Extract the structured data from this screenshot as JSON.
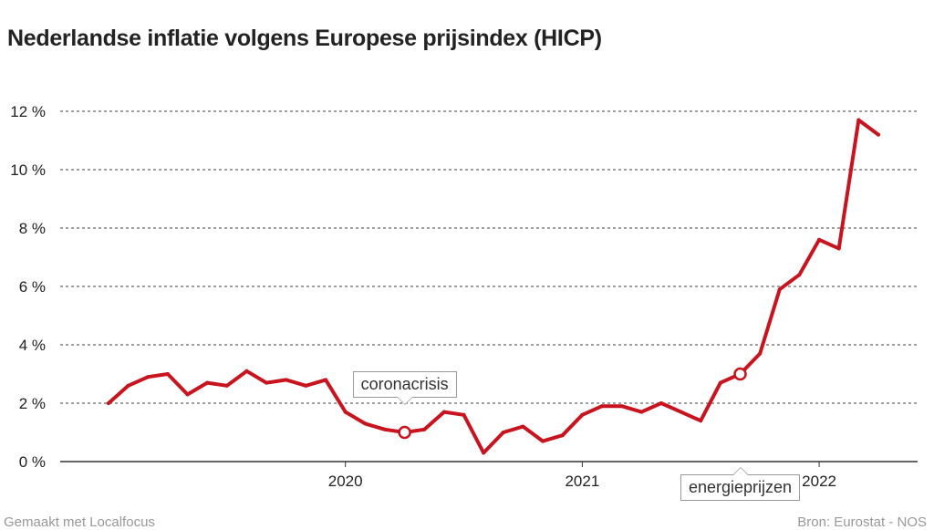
{
  "title": "Nederlandse inflatie volgens Europese prijsindex (HICP)",
  "footer": {
    "left": "Gemaakt met Localfocus",
    "right": "Bron: Eurostat - NOS"
  },
  "colors": {
    "line": "#c8141e",
    "grid": "#666666",
    "text": "#222222"
  },
  "chart_data": {
    "type": "line",
    "title": "Nederlandse inflatie volgens Europese prijsindex (HICP)",
    "xlabel": "",
    "ylabel": "",
    "ylim": [
      0,
      12
    ],
    "yticks": [
      0,
      2,
      4,
      6,
      8,
      10,
      12
    ],
    "ytick_labels": [
      "0 %",
      "2 %",
      "4 %",
      "6 %",
      "8 %",
      "10 %",
      "12 %"
    ],
    "xlim": [
      "2019-01",
      "2022-04"
    ],
    "xticks": [
      {
        "date": "2020-01",
        "label": "2020"
      },
      {
        "date": "2021-01",
        "label": "2021"
      },
      {
        "date": "2022-01",
        "label": "2022"
      }
    ],
    "grid": true,
    "legend": "none",
    "series": [
      {
        "x": [
          "2019-01",
          "2019-02",
          "2019-03",
          "2019-04",
          "2019-05",
          "2019-06",
          "2019-07",
          "2019-08",
          "2019-09",
          "2019-10",
          "2019-11",
          "2019-12",
          "2020-01",
          "2020-02",
          "2020-03",
          "2020-04",
          "2020-05",
          "2020-06",
          "2020-07",
          "2020-08",
          "2020-09",
          "2020-10",
          "2020-11",
          "2020-12",
          "2021-01",
          "2021-02",
          "2021-03",
          "2021-04",
          "2021-05",
          "2021-06",
          "2021-07",
          "2021-08",
          "2021-09",
          "2021-10",
          "2021-11",
          "2021-12",
          "2022-01",
          "2022-02",
          "2022-03",
          "2022-04"
        ],
        "values": [
          2.0,
          2.6,
          2.9,
          3.0,
          2.3,
          2.7,
          2.6,
          3.1,
          2.7,
          2.8,
          2.6,
          2.8,
          1.7,
          1.3,
          1.1,
          1.0,
          1.1,
          1.7,
          1.6,
          0.3,
          1.0,
          1.2,
          0.7,
          0.9,
          1.6,
          1.9,
          1.9,
          1.7,
          2.0,
          1.7,
          1.4,
          2.7,
          3.0,
          3.7,
          5.9,
          6.4,
          7.6,
          7.3,
          11.7,
          11.2
        ]
      }
    ],
    "annotations": [
      {
        "label": "coronacrisis",
        "date": "2020-04",
        "value": 1.0,
        "position": "above"
      },
      {
        "label": "energieprijzen",
        "date": "2021-09",
        "value": 3.0,
        "position": "below"
      }
    ]
  }
}
